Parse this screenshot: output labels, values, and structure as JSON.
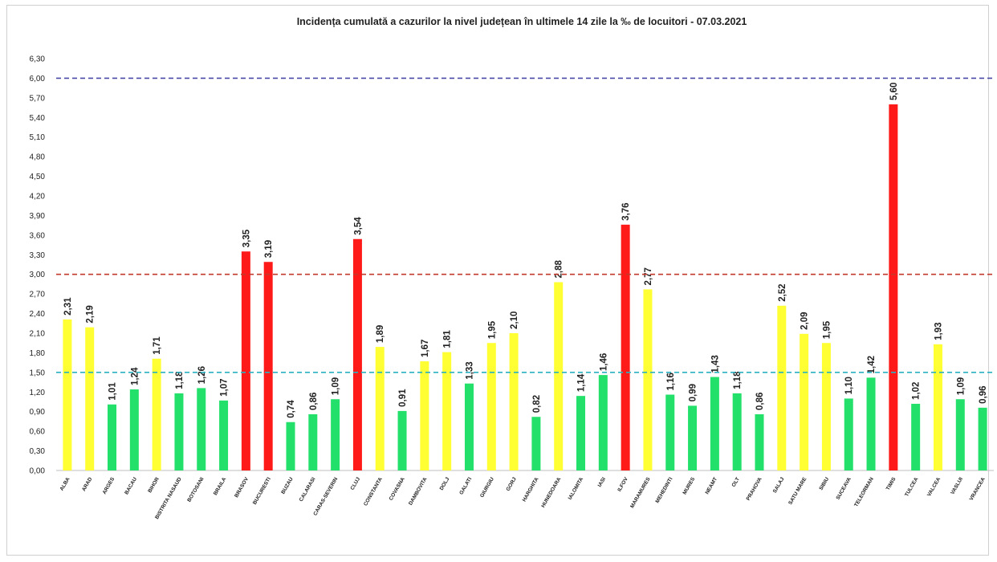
{
  "chart_data": {
    "type": "bar",
    "title": "Incidența cumulată a cazurilor la nivel județean în ultimele 14 zile la ‰ de locuitori - 07.03.2021",
    "xlabel": "",
    "ylabel": "",
    "ylim": [
      0,
      6.3
    ],
    "yticks": [
      "0,00",
      "0,30",
      "0,60",
      "0,90",
      "1,20",
      "1,50",
      "1,80",
      "2,10",
      "2,40",
      "2,70",
      "3,00",
      "3,30",
      "3,60",
      "3,90",
      "4,20",
      "4,50",
      "4,80",
      "5,10",
      "5,40",
      "5,70",
      "6,00",
      "6,30"
    ],
    "grid": false,
    "thresholds": [
      {
        "value": 6.0,
        "color": "#4a4aa8"
      },
      {
        "value": 3.0,
        "color": "#c0392b"
      },
      {
        "value": 1.5,
        "color": "#2ab0c0"
      }
    ],
    "colors": {
      "green": "#22e06a",
      "yellow": "#ffff33",
      "red": "#ff1a1a"
    },
    "categories": [
      "ALBA",
      "ARAD",
      "ARGES",
      "BACAU",
      "BIHOR",
      "BISTRITA NASAUD",
      "BOTOSANI",
      "BRAILA",
      "BRASOV",
      "BUCURESTI",
      "BUZAU",
      "CALARASI",
      "CARAS-SEVERIN",
      "CLUJ",
      "CONSTANTA",
      "COVASNA",
      "DAMBOVITA",
      "DOLJ",
      "GALATI",
      "GIURGIU",
      "GORJ",
      "HARGHITA",
      "HUNEDOARA",
      "IALOMITA",
      "IASI",
      "ILFOV",
      "MARAMURES",
      "MEHEDINTI",
      "MURES",
      "NEAMT",
      "OLT",
      "PRAHOVA",
      "SALAJ",
      "SATU MARE",
      "SIBIU",
      "SUCEAVA",
      "TELEORMAN",
      "TIMIS",
      "TULCEA",
      "VALCEA",
      "VASLUI",
      "VRANCEA"
    ],
    "values": [
      2.31,
      2.19,
      1.01,
      1.24,
      1.71,
      1.18,
      1.26,
      1.07,
      3.35,
      3.19,
      0.74,
      0.86,
      1.09,
      3.54,
      1.89,
      0.91,
      1.67,
      1.81,
      1.33,
      1.95,
      2.1,
      0.82,
      2.88,
      1.14,
      1.46,
      3.76,
      2.77,
      1.16,
      0.99,
      1.43,
      1.18,
      0.86,
      2.52,
      2.09,
      1.95,
      1.1,
      1.42,
      5.6,
      1.02,
      1.93,
      1.09,
      0.96
    ],
    "value_labels": [
      "2,31",
      "2,19",
      "1,01",
      "1,24",
      "1,71",
      "1,18",
      "1,26",
      "1,07",
      "3,35",
      "3,19",
      "0,74",
      "0,86",
      "1,09",
      "3,54",
      "1,89",
      "0,91",
      "1,67",
      "1,81",
      "1,33",
      "1,95",
      "2,10",
      "0,82",
      "2,88",
      "1,14",
      "1,46",
      "3,76",
      "2,77",
      "1,16",
      "0,99",
      "1,43",
      "1,18",
      "0,86",
      "2,52",
      "2,09",
      "1,95",
      "1,10",
      "1,42",
      "5,60",
      "1,02",
      "1,93",
      "1,09",
      "0,96"
    ],
    "bar_colors": [
      "yellow",
      "yellow",
      "green",
      "green",
      "yellow",
      "green",
      "green",
      "green",
      "red",
      "red",
      "green",
      "green",
      "green",
      "red",
      "yellow",
      "green",
      "yellow",
      "yellow",
      "green",
      "yellow",
      "yellow",
      "green",
      "yellow",
      "green",
      "green",
      "red",
      "yellow",
      "green",
      "green",
      "green",
      "green",
      "green",
      "yellow",
      "yellow",
      "yellow",
      "green",
      "green",
      "red",
      "green",
      "yellow",
      "green",
      "green"
    ]
  }
}
